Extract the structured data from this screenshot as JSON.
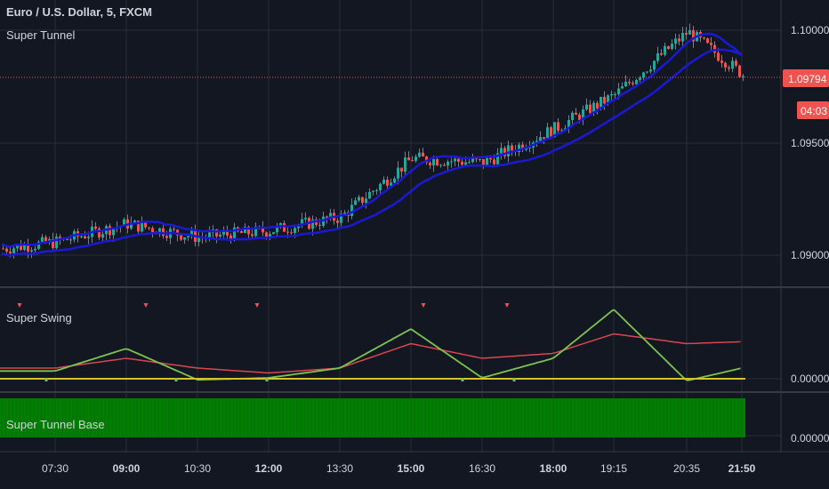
{
  "header": {
    "symbol_title": "Euro / U.S. Dollar, 5, FXCM"
  },
  "panes": [
    {
      "id": "price",
      "title": "Super Tunnel"
    },
    {
      "id": "osc",
      "title": "Super Swing"
    },
    {
      "id": "base",
      "title": "Super Tunnel Base"
    }
  ],
  "price_axis": {
    "ticks": [
      "1.10000",
      "1.09500",
      "1.09000"
    ],
    "current_price": "1.09794",
    "countdown": "04:03"
  },
  "osc_axis": {
    "ticks": [
      "0.00000"
    ]
  },
  "base_axis": {
    "ticks": [
      "0.00000"
    ]
  },
  "time_axis": {
    "ticks": [
      "07:30",
      "09:00",
      "10:30",
      "12:00",
      "13:30",
      "15:00",
      "16:30",
      "18:00",
      "19:15",
      "20:35",
      "21:50"
    ]
  },
  "colors": {
    "background": "#131722",
    "grid": "#2a2e39",
    "text": "#d1d4dc",
    "candle_up": "#26a69a",
    "candle_down": "#ef5350",
    "tunnel": "#1a1ad6",
    "osc_fast": "#7cc451",
    "osc_slow": "#d9474e",
    "zero_line": "#d4c22a",
    "base_hist": "#008000",
    "price_label_bg": "#ef5350"
  },
  "chart_data": [
    {
      "type": "line",
      "title": "Euro / U.S. Dollar, 5, FXCM",
      "pane": "Super Tunnel",
      "x": [
        "07:30",
        "09:00",
        "10:30",
        "12:00",
        "13:30",
        "15:00",
        "16:30",
        "18:00",
        "19:15",
        "20:35",
        "21:50"
      ],
      "series": [
        {
          "name": "",
          "values": [
            1.0905,
            1.0913,
            1.0907,
            1.091,
            1.0916,
            1.0942,
            1.094,
            1.0955,
            1.097,
            1.0998,
            1.0979
          ]
        }
      ],
      "ylim": [
        1.0885,
        1.1012
      ],
      "grid": true
    },
    {
      "type": "line",
      "pane": "Super Swing",
      "x": [
        "07:30",
        "09:00",
        "10:30",
        "12:00",
        "13:30",
        "15:00",
        "16:30",
        "18:00",
        "19:15",
        "20:35",
        "21:50"
      ],
      "series": [
        {
          "name": "",
          "values": [
            0.12,
            0.35,
            0.03,
            0.05,
            0.15,
            0.55,
            0.05,
            0.25,
            0.75,
            0.02,
            0.15
          ]
        },
        {
          "name": "",
          "values": [
            0.15,
            0.25,
            0.15,
            0.1,
            0.15,
            0.4,
            0.25,
            0.3,
            0.5,
            0.4,
            0.42
          ]
        }
      ],
      "ylim": [
        -0.05,
        0.95
      ]
    },
    {
      "type": "bar",
      "pane": "Super Tunnel Base",
      "values": [
        1,
        1,
        1,
        1,
        1,
        1,
        1,
        1,
        1,
        1,
        1
      ]
    }
  ]
}
